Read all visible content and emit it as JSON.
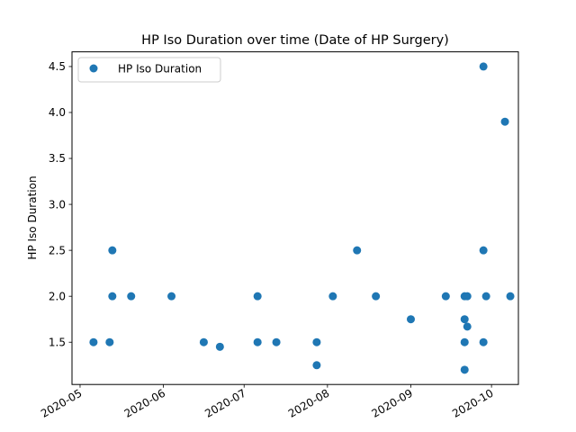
{
  "chart_data": {
    "type": "scatter",
    "title": "HP Iso Duration over time (Date of HP Surgery)",
    "xlabel": "",
    "ylabel": "HP Iso Duration",
    "x_type": "date",
    "xlim": [
      "2020-04-28",
      "2020-10-11"
    ],
    "ylim": [
      1.04,
      4.66
    ],
    "x_ticks": [
      "2020-05-01",
      "2020-06-01",
      "2020-07-01",
      "2020-08-01",
      "2020-09-01",
      "2020-10-01"
    ],
    "x_tick_labels": [
      "2020-05",
      "2020-06",
      "2020-07",
      "2020-08",
      "2020-09",
      "2020-10"
    ],
    "y_ticks": [
      1.5,
      2.0,
      2.5,
      3.0,
      3.5,
      4.0,
      4.5
    ],
    "y_tick_labels": [
      "1.5",
      "2.0",
      "2.5",
      "3.0",
      "3.5",
      "4.0",
      "4.5"
    ],
    "grid": false,
    "legend": {
      "position": "top-left",
      "entries": [
        "HP Iso Duration"
      ]
    },
    "series": [
      {
        "name": "HP Iso Duration",
        "color": "#1f77b4",
        "points": [
          {
            "x": "2020-05-06",
            "y": 1.5
          },
          {
            "x": "2020-05-12",
            "y": 1.5
          },
          {
            "x": "2020-05-13",
            "y": 2.5
          },
          {
            "x": "2020-05-13",
            "y": 2.0
          },
          {
            "x": "2020-05-20",
            "y": 2.0
          },
          {
            "x": "2020-06-04",
            "y": 2.0
          },
          {
            "x": "2020-06-16",
            "y": 1.5
          },
          {
            "x": "2020-06-22",
            "y": 1.45
          },
          {
            "x": "2020-07-06",
            "y": 2.0
          },
          {
            "x": "2020-07-06",
            "y": 1.5
          },
          {
            "x": "2020-07-13",
            "y": 1.5
          },
          {
            "x": "2020-07-28",
            "y": 1.5
          },
          {
            "x": "2020-07-28",
            "y": 1.25
          },
          {
            "x": "2020-08-03",
            "y": 2.0
          },
          {
            "x": "2020-08-12",
            "y": 2.5
          },
          {
            "x": "2020-08-19",
            "y": 2.0
          },
          {
            "x": "2020-09-01",
            "y": 1.75
          },
          {
            "x": "2020-09-14",
            "y": 2.0
          },
          {
            "x": "2020-09-21",
            "y": 2.0
          },
          {
            "x": "2020-09-21",
            "y": 1.75
          },
          {
            "x": "2020-09-21",
            "y": 1.5
          },
          {
            "x": "2020-09-21",
            "y": 1.2
          },
          {
            "x": "2020-09-22",
            "y": 2.0
          },
          {
            "x": "2020-09-22",
            "y": 1.67
          },
          {
            "x": "2020-09-28",
            "y": 4.5
          },
          {
            "x": "2020-09-28",
            "y": 2.5
          },
          {
            "x": "2020-09-28",
            "y": 1.5
          },
          {
            "x": "2020-09-29",
            "y": 2.0
          },
          {
            "x": "2020-10-06",
            "y": 3.9
          },
          {
            "x": "2020-10-08",
            "y": 2.0
          }
        ]
      }
    ]
  }
}
